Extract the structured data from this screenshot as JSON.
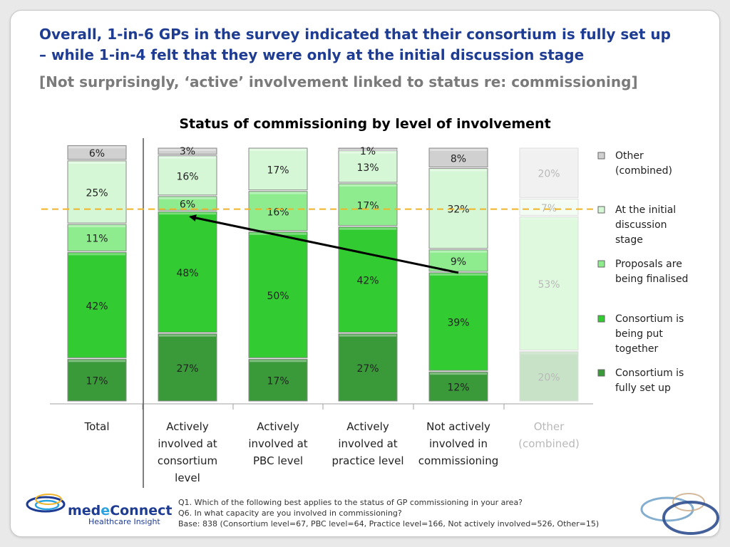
{
  "headline": {
    "line1": "Overall, 1-in-6 GPs in the survey indicated that their consortium is fully set up",
    "line2": "– while 1-in-4 felt that they were only at the initial discussion stage",
    "sub": "[Not surprisingly, ‘active’ involvement linked to status re: commissioning]"
  },
  "colors": {
    "fully_set_up": "#3a9a3a",
    "being_put_together": "#32cc32",
    "proposals_finalised": "#8eec8e",
    "initial_discussion": "#d6f7d6",
    "other": "#d0d0d0",
    "bar_border": "#8a8a8a",
    "reference_line": "#f0b428",
    "arrow": "#000000"
  },
  "chart_data": {
    "type": "bar",
    "stacked": true,
    "title": "Status of commissioning by level of involvement",
    "ylim": [
      0,
      100
    ],
    "categories": [
      "Total",
      "Actively involved at consortium level",
      "Actively involved at PBC level",
      "Actively involved at practice level",
      "Not actively involved in commissioning",
      "Other (combined)"
    ],
    "category_lines": [
      [
        "Total"
      ],
      [
        "Actively",
        "involved at",
        "consortium",
        "level"
      ],
      [
        "Actively",
        "involved at",
        "PBC level"
      ],
      [
        "Actively",
        "involved at",
        "practice level"
      ],
      [
        "Not actively",
        "involved in",
        "commissioning"
      ],
      [
        "Other",
        "(combined)"
      ]
    ],
    "faded_categories": [
      5
    ],
    "series": [
      {
        "name": "Consortium is fully set up",
        "values": [
          17,
          27,
          17,
          27,
          12,
          20
        ],
        "labels": [
          "17%",
          "27%",
          "17%",
          "27%",
          "12%",
          "20%"
        ]
      },
      {
        "name": "Consortium is being put together",
        "values": [
          42,
          48,
          50,
          42,
          39,
          0
        ],
        "labels": [
          "42%",
          "48%",
          "50%",
          "42%",
          "39%",
          ""
        ]
      },
      {
        "name": "Proposals are being finalised",
        "values": [
          11,
          6,
          16,
          17,
          9,
          53
        ],
        "labels": [
          "11%",
          "6%",
          "16%",
          "17%",
          "9%",
          "53%"
        ]
      },
      {
        "name": "At the initial discussion stage",
        "values": [
          25,
          16,
          17,
          13,
          32,
          7
        ],
        "labels": [
          "25%",
          "16%",
          "17%",
          "13%",
          "32%",
          "7%"
        ]
      },
      {
        "name": "Other (combined)",
        "values": [
          6,
          3,
          0,
          1,
          8,
          20
        ],
        "labels": [
          "6%",
          "3%",
          "",
          "1%",
          "8%",
          "20%"
        ]
      }
    ],
    "legend": {
      "placement": "right",
      "entries": [
        {
          "lines": [
            "Other",
            "(combined)"
          ],
          "series": 4
        },
        {
          "lines": [
            "At the initial",
            "discussion",
            "stage"
          ],
          "series": 3
        },
        {
          "lines": [
            "Proposals are",
            "being finalised"
          ],
          "series": 2
        },
        {
          "lines": [
            "Consortium is",
            "being put",
            "together"
          ],
          "series": 1
        },
        {
          "lines": [
            "Consortium is",
            "fully set up"
          ],
          "series": 0
        }
      ]
    },
    "reference_line_value": 76,
    "arrow": {
      "from_category": 4,
      "from_value": 51,
      "to_category": 1,
      "to_value": 73
    }
  },
  "footnote": {
    "q1": "Q1. Which of the following best applies to the status of GP commissioning in your area?",
    "q6": "Q6. In what capacity are you involved in commissioning?",
    "base": "Base: 838 (Consortium level=67, PBC level=64, Practice level=166, Not actively involved=526, Other=15)"
  },
  "logo": {
    "brand_pre": "med",
    "brand_e": "e",
    "brand_post": "Connect",
    "tagline": "Healthcare Insight"
  }
}
